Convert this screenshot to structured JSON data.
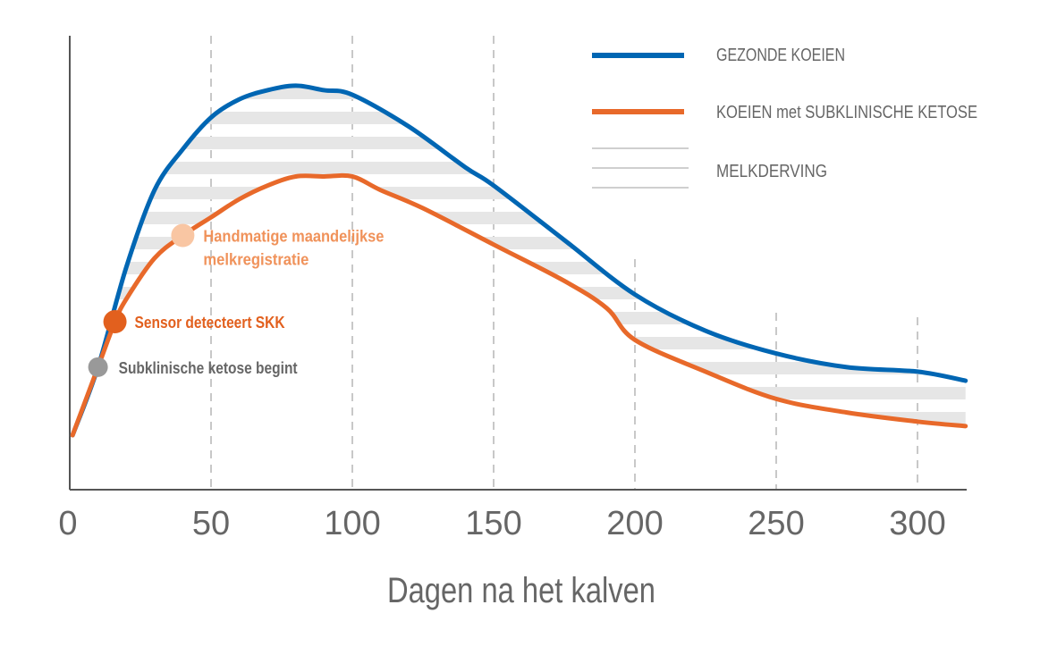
{
  "chart_data": {
    "type": "line",
    "title": "",
    "xlabel": "Dagen na het kalven",
    "ylabel": "",
    "xlim": [
      0,
      317
    ],
    "ylim": [
      0,
      100
    ],
    "x_ticks": [
      "0",
      "50",
      "100",
      "150",
      "200",
      "250",
      "300"
    ],
    "grid": "vertical dashed",
    "legend_placement": "top-right",
    "series": [
      {
        "name": "GEZONDE KOEIEN",
        "color": "#0066b3",
        "x": [
          1,
          10,
          20,
          30,
          40,
          50,
          60,
          70,
          80,
          90,
          100,
          120,
          140,
          150,
          175,
          200,
          225,
          250,
          275,
          300,
          317
        ],
        "values": [
          12,
          27,
          49,
          66,
          75,
          82,
          86,
          88,
          89,
          88,
          87,
          80,
          71,
          67,
          55,
          43,
          35,
          30,
          27,
          26,
          24
        ]
      },
      {
        "name": "KOEIEN met SUBKLINISCHE KETOSE",
        "color": "#e8692a",
        "x": [
          1,
          10,
          16,
          20,
          30,
          40,
          50,
          60,
          70,
          80,
          90,
          100,
          110,
          125,
          150,
          175,
          190,
          200,
          225,
          250,
          275,
          300,
          317
        ],
        "values": [
          12,
          27,
          37,
          42,
          51,
          56,
          60,
          64,
          67,
          69,
          69,
          69,
          66,
          62,
          54,
          46,
          40,
          33,
          26,
          20,
          17,
          15,
          14
        ]
      }
    ],
    "shaded_area": {
      "name": "MELKDERVING",
      "color": "#e6e6e6",
      "style": "horizontal stripes between series"
    },
    "annotations": [
      {
        "x": 10,
        "value": 27,
        "label": "Subklinische ketose begint",
        "color": "#999999"
      },
      {
        "x": 16,
        "value": 37,
        "label": "Sensor detecteert SKK",
        "color": "#e2601e"
      },
      {
        "x": 40,
        "value": 56,
        "label_lines": [
          "Handmatige maandelijkse",
          "melkregistratie"
        ],
        "color": "#f9c6a3",
        "text_color": "#f0925a"
      }
    ]
  }
}
